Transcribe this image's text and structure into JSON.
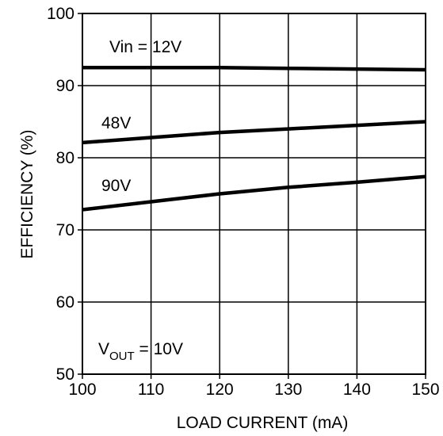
{
  "chart_data": {
    "type": "line",
    "xlabel": "LOAD CURRENT (mA)",
    "ylabel": "EFFICIENCY (%)",
    "xlim": [
      100,
      150
    ],
    "ylim": [
      50,
      100
    ],
    "x_ticks": [
      "100",
      "110",
      "120",
      "130",
      "140",
      "150"
    ],
    "y_ticks": [
      "50",
      "60",
      "70",
      "80",
      "90",
      "100"
    ],
    "grid": true,
    "series": [
      {
        "name": "Vin = 12V",
        "x": [
          100,
          110,
          120,
          130,
          140,
          150
        ],
        "y": [
          92.5,
          92.5,
          92.5,
          92.4,
          92.3,
          92.2
        ]
      },
      {
        "name": "48V",
        "x": [
          100,
          110,
          120,
          130,
          140,
          150
        ],
        "y": [
          82.1,
          82.8,
          83.5,
          84.0,
          84.5,
          85.0
        ]
      },
      {
        "name": "90V",
        "x": [
          100,
          110,
          120,
          130,
          140,
          150
        ],
        "y": [
          72.8,
          73.9,
          75.0,
          75.9,
          76.6,
          77.4
        ]
      }
    ],
    "annotation": {
      "prefix": "V",
      "subscript": "OUT",
      "suffix": " = 10V"
    }
  }
}
